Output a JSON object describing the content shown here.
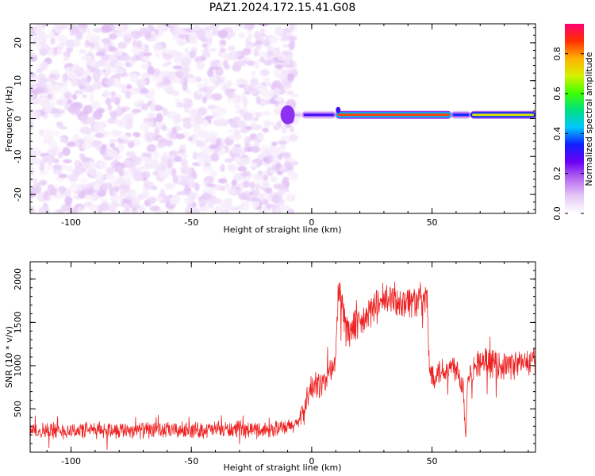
{
  "title": "PAZ1.2024.172.15.41.G08",
  "colors": {
    "snr_line": "#ee2222",
    "colormap": [
      "#ffffff",
      "#e6c9f7",
      "#b86cf0",
      "#6a00f4",
      "#1020ff",
      "#00c8ff",
      "#00e080",
      "#40ff00",
      "#d8f000",
      "#ffb000",
      "#ff3000",
      "#ff0070"
    ]
  },
  "chart_data": [
    {
      "type": "heatmap",
      "title": "PAZ1.2024.172.15.41.G08",
      "xlabel": "Height of straight line (km)",
      "ylabel": "Frequency (Hz)",
      "xlim": [
        -117,
        93
      ],
      "ylim": [
        -25,
        25
      ],
      "xticks": [
        -100,
        -50,
        0,
        50
      ],
      "yticks": [
        -20,
        -10,
        0,
        10,
        20
      ],
      "colorbar": {
        "label": "Normalized spectral amplitude",
        "range": [
          0,
          0.95
        ],
        "ticks": [
          "0.0",
          "0.2",
          "0.4",
          "0.6",
          "0.8"
        ],
        "tick_values": [
          0,
          0.2,
          0.4,
          0.6,
          0.8
        ]
      },
      "signal": {
        "noise_region_x": [
          -117,
          -10
        ],
        "noise_amplitude_range": [
          0.02,
          0.1
        ],
        "signal_frequency_hz": 1,
        "signal_start_x": -10,
        "signal_segments": [
          {
            "x": [
              -10,
              -4
            ],
            "amplitude": 0.1
          },
          {
            "x": [
              -4,
              10
            ],
            "amplitude": 0.3
          },
          {
            "x": [
              10,
              58
            ],
            "amplitude": 0.85
          },
          {
            "x": [
              58,
              66
            ],
            "amplitude": 0.35
          },
          {
            "x": [
              66,
              93
            ],
            "amplitude": 0.7
          }
        ]
      }
    },
    {
      "type": "line",
      "title": "",
      "xlabel": "Height of straight line (km)",
      "ylabel": "SNR (10 * v/v)",
      "xlim": [
        -117,
        93
      ],
      "ylim": [
        0,
        2200
      ],
      "xticks": [
        -100,
        -50,
        0,
        50
      ],
      "yticks": [
        500,
        1000,
        1500,
        2000
      ],
      "series": [
        {
          "x": [
            -117,
            -100,
            -80,
            -60,
            -40,
            -20,
            -10,
            -5,
            -2,
            0,
            5,
            10,
            11,
            15,
            20,
            25,
            30,
            35,
            40,
            45,
            48,
            49,
            55,
            60,
            63,
            64,
            65,
            70,
            80,
            93
          ],
          "values": [
            250,
            250,
            260,
            250,
            260,
            260,
            280,
            350,
            600,
            750,
            800,
            1050,
            1900,
            1400,
            1450,
            1650,
            1750,
            1750,
            1750,
            1750,
            1750,
            900,
            950,
            1000,
            750,
            200,
            900,
            1050,
            1000,
            1050
          ]
        }
      ]
    }
  ]
}
